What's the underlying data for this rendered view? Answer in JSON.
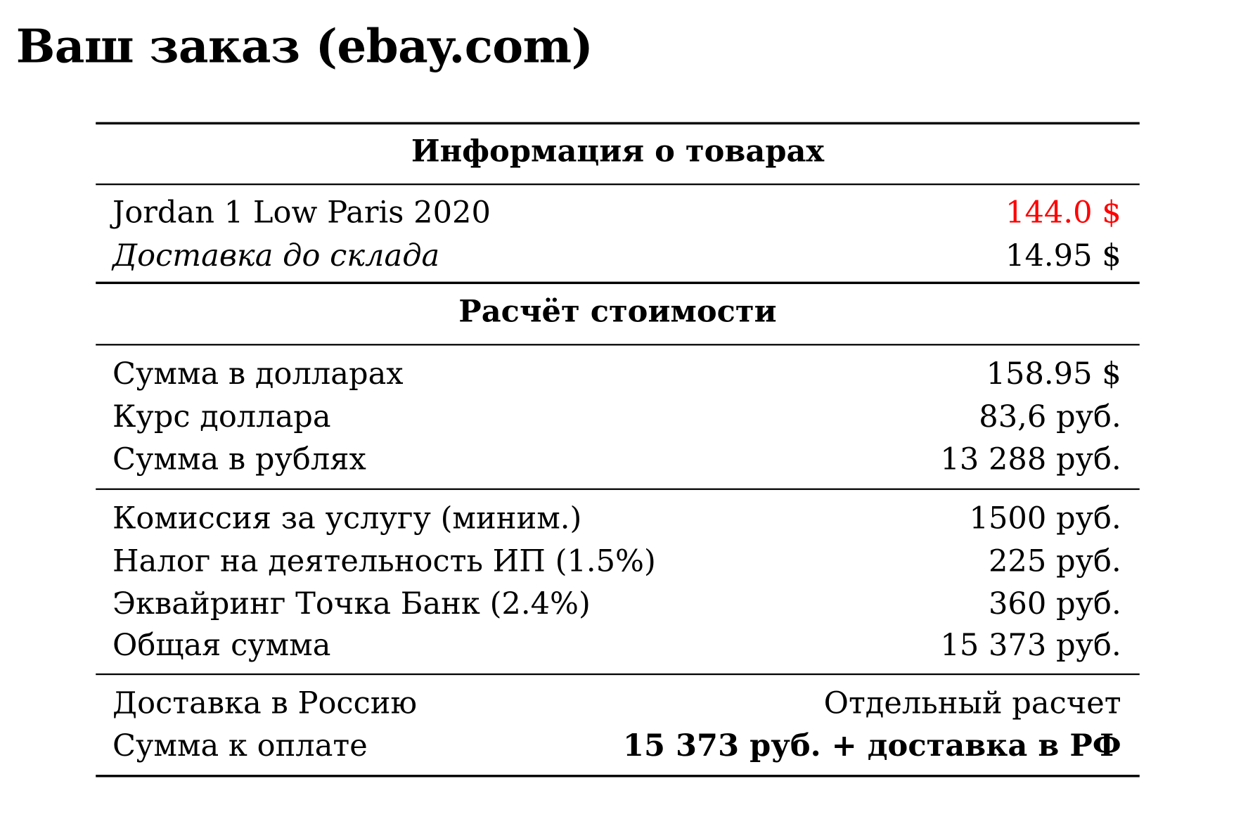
{
  "title": "Ваш заказ (ebay.com)",
  "sections": {
    "goods_header": "Информация о товарах",
    "calc_header": "Расчёт стоимости"
  },
  "goods": [
    {
      "label": "Jordan 1 Low Paris 2020",
      "value": "144.0 $",
      "value_color": "#ff0000"
    },
    {
      "label": "Доставка до склада",
      "value": "14.95 $"
    }
  ],
  "calc": [
    {
      "label": "Сумма в долларах",
      "value": "158.95 $"
    },
    {
      "label": "Курс доллара",
      "value": "83,6 руб."
    },
    {
      "label": "Сумма в рублях",
      "value": "13 288 руб."
    }
  ],
  "fees": [
    {
      "label": "Комиссия за услугу (миним.)",
      "value": "1500 руб."
    },
    {
      "label": "Налог на деятельность ИП (1.5%)",
      "value": "225 руб."
    },
    {
      "label": "Эквайринг Точка Банк (2.4%)",
      "value": "360 руб."
    },
    {
      "label": "Общая сумма",
      "value": "15 373 руб."
    }
  ],
  "final": [
    {
      "label": "Доставка в Россию",
      "value": "Отдельный расчет"
    },
    {
      "label": "Сумма к оплате",
      "value": "15 373 руб. + доставка в РФ"
    }
  ]
}
